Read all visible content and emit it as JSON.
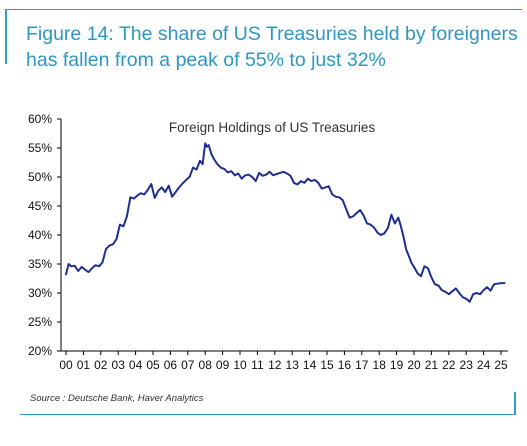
{
  "header": {
    "title_line1": "Figure 14: The share of US Treasuries held by foreigners",
    "title_line2": "has fallen from a peak of 55% to just 32%"
  },
  "footer": {
    "source": "Source : Deutsche Bank, Haver Analytics"
  },
  "colors": {
    "accent": "#2aa0c8",
    "title": "#2d97c2",
    "line": "#1f2f8f"
  },
  "chart_data": {
    "type": "line",
    "title": "Foreign Holdings of US Treasuries",
    "xlabel": "",
    "ylabel": "",
    "ylim": [
      20,
      60
    ],
    "xlim": [
      0,
      25.5
    ],
    "y_ticks": [
      20,
      25,
      30,
      35,
      40,
      45,
      50,
      55,
      60
    ],
    "y_tick_labels": [
      "20%",
      "25%",
      "30%",
      "35%",
      "40%",
      "45%",
      "50%",
      "55%",
      "60%"
    ],
    "x_ticks": [
      0,
      1,
      2,
      3,
      4,
      5,
      6,
      7,
      8,
      9,
      10,
      11,
      12,
      13,
      14,
      15,
      16,
      17,
      18,
      19,
      20,
      21,
      22,
      23,
      24,
      25
    ],
    "x_tick_labels": [
      "00",
      "01",
      "02",
      "03",
      "04",
      "05",
      "06",
      "07",
      "08",
      "09",
      "10",
      "11",
      "12",
      "13",
      "14",
      "15",
      "16",
      "17",
      "18",
      "19",
      "20",
      "21",
      "22",
      "23",
      "24",
      "25"
    ],
    "grid": false,
    "series": [
      {
        "x": [
          0,
          0.15,
          0.3,
          0.5,
          0.7,
          0.9,
          1.1,
          1.3,
          1.5,
          1.7,
          1.9,
          2.1,
          2.3,
          2.5,
          2.7,
          2.9,
          3.1,
          3.3,
          3.5,
          3.7,
          3.9,
          4.1,
          4.3,
          4.5,
          4.7,
          4.9,
          5.1,
          5.3,
          5.5,
          5.7,
          5.9,
          6.1,
          6.3,
          6.5,
          6.7,
          6.9,
          7.1,
          7.3,
          7.5,
          7.7,
          7.85,
          8.0,
          8.1,
          8.2,
          8.35,
          8.5,
          8.7,
          8.9,
          9.1,
          9.3,
          9.5,
          9.7,
          9.9,
          10.1,
          10.3,
          10.5,
          10.7,
          10.9,
          11.1,
          11.3,
          11.5,
          11.7,
          11.9,
          12.1,
          12.3,
          12.5,
          12.7,
          12.9,
          13.1,
          13.3,
          13.5,
          13.7,
          13.9,
          14.1,
          14.3,
          14.5,
          14.7,
          14.9,
          15.1,
          15.3,
          15.5,
          15.7,
          15.9,
          16.1,
          16.3,
          16.5,
          16.7,
          16.9,
          17.1,
          17.3,
          17.5,
          17.7,
          17.9,
          18.1,
          18.3,
          18.5,
          18.7,
          18.9,
          19.1,
          19.25,
          19.4,
          19.55,
          19.7,
          19.85,
          20.0,
          20.2,
          20.4,
          20.6,
          20.8,
          21.0,
          21.2,
          21.4,
          21.6,
          21.8,
          22.0,
          22.2,
          22.4,
          22.6,
          22.8,
          23.0,
          23.2,
          23.4,
          23.6,
          23.8,
          24.0,
          24.2,
          24.4,
          24.6,
          24.8,
          25.0,
          25.2
        ],
        "values": [
          33.2,
          35.0,
          34.6,
          34.7,
          33.8,
          34.5,
          34.0,
          33.6,
          34.3,
          34.8,
          34.6,
          35.3,
          37.6,
          38.2,
          38.4,
          39.3,
          41.8,
          41.5,
          43.2,
          46.5,
          46.3,
          46.8,
          47.2,
          47.0,
          47.8,
          48.8,
          46.4,
          47.6,
          48.2,
          47.4,
          48.5,
          46.6,
          47.4,
          48.2,
          48.9,
          49.5,
          50.0,
          51.6,
          51.3,
          52.8,
          52.2,
          55.8,
          55.2,
          55.5,
          54.0,
          53.1,
          52.2,
          51.6,
          51.4,
          50.8,
          51.0,
          50.3,
          50.6,
          49.7,
          50.3,
          50.4,
          50.0,
          49.3,
          50.7,
          50.2,
          50.4,
          50.9,
          50.3,
          50.5,
          50.7,
          50.9,
          50.6,
          50.2,
          49.0,
          48.7,
          49.3,
          49.0,
          49.7,
          49.3,
          49.5,
          49.0,
          48.0,
          48.2,
          48.4,
          47.0,
          46.6,
          46.5,
          46.0,
          44.5,
          43.0,
          43.2,
          43.8,
          44.3,
          43.4,
          42.0,
          41.8,
          41.3,
          40.4,
          40.0,
          40.3,
          41.2,
          43.5,
          42.0,
          43.0,
          41.5,
          39.6,
          37.5,
          36.4,
          35.2,
          34.5,
          33.4,
          32.9,
          34.6,
          34.3,
          32.7,
          31.5,
          31.3,
          30.5,
          30.2,
          29.8,
          30.3,
          30.8,
          30.0,
          29.3,
          29.0,
          28.5,
          29.8,
          30.0,
          29.8,
          30.5,
          31.0,
          30.4,
          31.5,
          31.6,
          31.7,
          31.7
        ]
      }
    ]
  }
}
